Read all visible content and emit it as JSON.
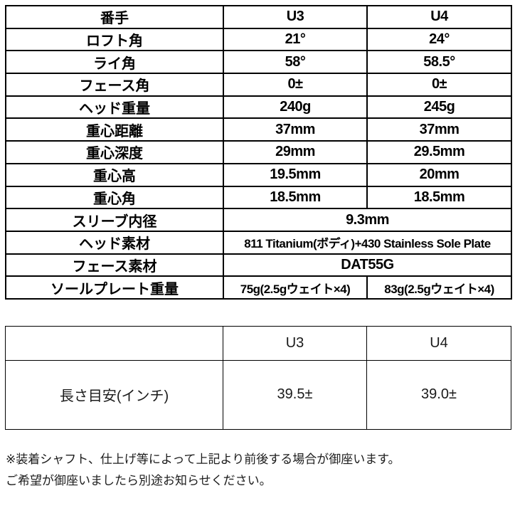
{
  "spec_table": {
    "rows": [
      {
        "label": "番手",
        "u3": "U3",
        "u4": "U4"
      },
      {
        "label": "ロフト角",
        "u3": "21°",
        "u4": "24°"
      },
      {
        "label": "ライ角",
        "u3": "58°",
        "u4": "58.5°"
      },
      {
        "label": "フェース角",
        "u3": "0±",
        "u4": "0±"
      },
      {
        "label": "ヘッド重量",
        "u3": "240g",
        "u4": "245g"
      },
      {
        "label": "重心距離",
        "u3": "37mm",
        "u4": "37mm"
      },
      {
        "label": "重心深度",
        "u3": "29mm",
        "u4": "29.5mm"
      },
      {
        "label": "重心高",
        "u3": "19.5mm",
        "u4": "20mm"
      },
      {
        "label": "重心角",
        "u3": "18.5mm",
        "u4": "18.5mm"
      },
      {
        "label": "スリーブ内径",
        "value": "9.3mm"
      },
      {
        "label": "ヘッド素材",
        "value": "811 Titanium(ボディ)+430 Stainless Sole Plate"
      },
      {
        "label": "フェース素材",
        "value": "DAT55G"
      },
      {
        "label": "ソールプレート重量",
        "u3": "75g(2.5gウェイト×4)",
        "u4": "83g(2.5gウェイト×4)"
      }
    ]
  },
  "length_table": {
    "header": {
      "label": "",
      "u3": "U3",
      "u4": "U4"
    },
    "row": {
      "label": "長さ目安(インチ)",
      "u3": "39.5±",
      "u4": "39.0±"
    }
  },
  "notes": {
    "line1": "※装着シャフト、仕上げ等によって上記より前後する場合が御座います。",
    "line2": "ご希望が御座いましたら別途お知らせください。"
  }
}
